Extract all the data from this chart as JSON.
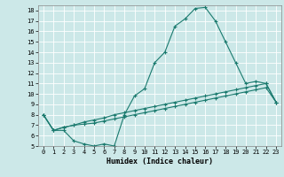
{
  "title": "",
  "xlabel": "Humidex (Indice chaleur)",
  "bg_color": "#cce8e8",
  "line_color": "#1a7a6e",
  "grid_color": "#ffffff",
  "xlim": [
    -0.5,
    23.5
  ],
  "ylim": [
    5,
    18.5
  ],
  "xticks": [
    0,
    1,
    2,
    3,
    4,
    5,
    6,
    7,
    8,
    9,
    10,
    11,
    12,
    13,
    14,
    15,
    16,
    17,
    18,
    19,
    20,
    21,
    22,
    23
  ],
  "yticks": [
    5,
    6,
    7,
    8,
    9,
    10,
    11,
    12,
    13,
    14,
    15,
    16,
    17,
    18
  ],
  "line1_x": [
    0,
    1,
    2,
    3,
    4,
    5,
    6,
    7,
    8,
    9,
    10,
    11,
    12,
    13,
    14,
    15,
    16,
    17,
    18,
    19,
    20,
    21,
    22,
    23
  ],
  "line1_y": [
    8.0,
    6.5,
    6.5,
    5.5,
    5.2,
    5.0,
    5.2,
    5.0,
    8.0,
    9.8,
    10.5,
    13.0,
    14.0,
    16.5,
    17.2,
    18.2,
    18.3,
    17.0,
    15.0,
    13.0,
    11.0,
    11.2,
    11.0,
    9.2
  ],
  "line2_x": [
    0,
    1,
    2,
    3,
    4,
    5,
    6,
    7,
    8,
    9,
    10,
    11,
    12,
    13,
    14,
    15,
    16,
    17,
    18,
    19,
    20,
    21,
    22,
    23
  ],
  "line2_y": [
    8.0,
    6.5,
    6.8,
    7.0,
    7.3,
    7.5,
    7.7,
    8.0,
    8.2,
    8.4,
    8.6,
    8.8,
    9.0,
    9.2,
    9.4,
    9.6,
    9.8,
    10.0,
    10.2,
    10.4,
    10.6,
    10.8,
    11.0,
    9.2
  ],
  "line3_x": [
    0,
    1,
    2,
    3,
    4,
    5,
    6,
    7,
    8,
    9,
    10,
    11,
    12,
    13,
    14,
    15,
    16,
    17,
    18,
    19,
    20,
    21,
    22,
    23
  ],
  "line3_y": [
    8.0,
    6.5,
    6.8,
    7.0,
    7.1,
    7.2,
    7.4,
    7.6,
    7.8,
    8.0,
    8.2,
    8.4,
    8.6,
    8.8,
    9.0,
    9.2,
    9.4,
    9.6,
    9.8,
    10.0,
    10.2,
    10.4,
    10.6,
    9.2
  ]
}
